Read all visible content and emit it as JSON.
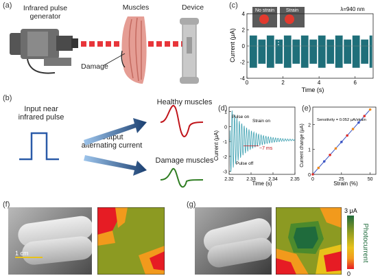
{
  "panels": {
    "a": {
      "label": "(a)",
      "generator_label_line1": "Infrared pulse",
      "generator_label_line2": "generator",
      "muscles_label": "Muscles",
      "device_label": "Device",
      "damage_label": "Damage"
    },
    "b": {
      "label": "(b)",
      "input_line1": "Input near",
      "input_line2": "infrared pulse",
      "output_line1": "Output",
      "output_line2": "alternating current",
      "healthy_label": "Healthy muscles",
      "damage_label": "Damage muscles"
    },
    "c": {
      "label": "(c)",
      "inset_no_strain": "No strain",
      "inset_strain": "Strain",
      "wavelength": "λ=940 nm",
      "ylabel": "Current (μA)",
      "xlabel": "Time (s)"
    },
    "d": {
      "label": "(d)",
      "pulse_on": "Pulse on",
      "strain_on": "Strain on",
      "pulse_off": "Pulse off",
      "delay": "~7 ms",
      "ylabel": "Current (μA)",
      "xlabel": "Time (s)"
    },
    "e": {
      "label": "(e)",
      "sensitivity": "Sensitivity = 0.052 μA/strain",
      "ylabel": "Current change (μA)",
      "xlabel": "Strain (%)"
    },
    "f": {
      "label": "(f)",
      "scale_bar": "1 cm"
    },
    "g": {
      "label": "(g)"
    },
    "colorbar": {
      "max_label": "3 μA",
      "min_label": "0",
      "title": "Photocurrent"
    }
  },
  "chart_data": [
    {
      "id": "c",
      "type": "line",
      "xlim": [
        0,
        7
      ],
      "ylim": [
        -4,
        4
      ],
      "xticks": [
        0,
        2,
        4,
        6
      ],
      "yticks": [
        -4,
        -2,
        0,
        2,
        4
      ],
      "envelope_no_strain": [
        -2.7,
        1.3
      ],
      "envelope_strain": [
        -2.2,
        0.8
      ],
      "strain_period_s": 0.5,
      "color": "#1f6f7a"
    },
    {
      "id": "d",
      "type": "line",
      "xlim": [
        2.32,
        2.35
      ],
      "ylim": [
        -3.2,
        1.3
      ],
      "xticks": [
        2.32,
        2.33,
        2.34,
        2.35
      ],
      "yticks": [
        -3,
        -2,
        -1,
        0,
        1
      ],
      "color": "#3a9fb0"
    },
    {
      "id": "e",
      "type": "scatter",
      "xlim": [
        0,
        55
      ],
      "ylim": [
        0,
        2.7
      ],
      "xticks": [
        0,
        25,
        50
      ],
      "yticks": [
        0,
        1,
        2
      ],
      "x": [
        0,
        5,
        10,
        15,
        20,
        25,
        30,
        35,
        40,
        45,
        50
      ],
      "y": [
        0,
        0.26,
        0.52,
        0.78,
        1.04,
        1.3,
        1.56,
        1.82,
        2.08,
        2.34,
        2.6
      ],
      "fit_color": "#3a55c4",
      "point_colors": [
        "#e0312d",
        "#f08a1c",
        "#3a55c4"
      ]
    }
  ],
  "colors": {
    "healthy_wave": "#c0141a",
    "damage_wave": "#2f7d22",
    "pulse": "#2a5aa8",
    "laser": "#e8353a",
    "heat_green": "#8c9a22",
    "heat_dark_green": "#1f6b3c",
    "heat_orange": "#f29a1c",
    "heat_red": "#e61c24",
    "heat_yellow": "#e8c21a"
  }
}
